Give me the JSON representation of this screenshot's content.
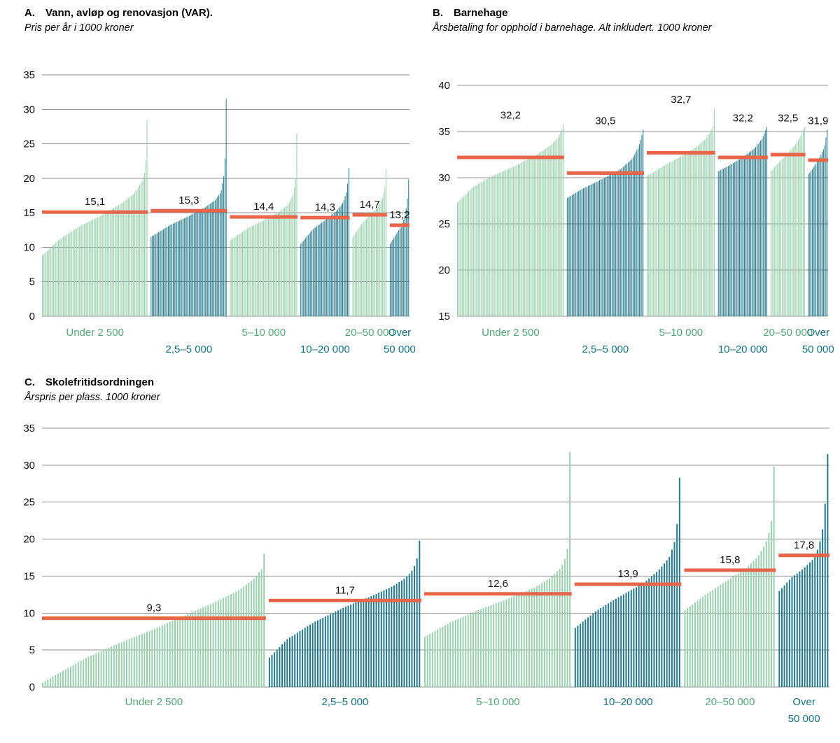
{
  "colors": {
    "green_bar": "#9ccfae",
    "teal_bar": "#26798a",
    "green_label": "#55a476",
    "teal_label": "#17707f",
    "mean_line": "#e8654a",
    "grid": "#8f8f8f",
    "text": "#111111"
  },
  "chart_data": [
    {
      "type": "bar",
      "label": "A.",
      "title": "Vann, avløp og renovasjon (VAR).",
      "subtitle": "Pris per år i 1000 kroner",
      "y_axis": {
        "min": 0,
        "max": 35,
        "step": 5
      },
      "mean_label_position": "above_line",
      "note": "Each thin bar is one municipality, sorted ascending within population-size group; orange segment marks the group mean.",
      "groups": [
        {
          "name": "Under 2 500",
          "color": "green",
          "mean": 15.1,
          "mean_label": "15,1",
          "count": 86,
          "label_row": 1,
          "label_lines": [
            "Under 2 500"
          ],
          "profile": [
            [
              0,
              8.8
            ],
            [
              0.15,
              11
            ],
            [
              0.35,
              13
            ],
            [
              0.55,
              14.5
            ],
            [
              0.75,
              16.3
            ],
            [
              0.88,
              17.8
            ],
            [
              0.95,
              19.5
            ],
            [
              0.98,
              21
            ],
            [
              0.995,
              24
            ],
            [
              1,
              28.5
            ]
          ]
        },
        {
          "name": "2,5–5 000",
          "color": "teal",
          "mean": 15.3,
          "mean_label": "15,3",
          "count": 62,
          "label_row": 2,
          "label_lines": [
            "2,5–5 000"
          ],
          "profile": [
            [
              0,
              11.5
            ],
            [
              0.25,
              13.2
            ],
            [
              0.5,
              14.5
            ],
            [
              0.72,
              15.8
            ],
            [
              0.85,
              16.8
            ],
            [
              0.93,
              18
            ],
            [
              0.97,
              20.5
            ],
            [
              0.99,
              24
            ],
            [
              1,
              31.5
            ]
          ]
        },
        {
          "name": "5–10 000",
          "color": "green",
          "mean": 14.4,
          "mean_label": "14,4",
          "count": 55,
          "label_row": 1,
          "label_lines": [
            "5–10 000"
          ],
          "profile": [
            [
              0,
              11
            ],
            [
              0.25,
              12.7
            ],
            [
              0.5,
              13.9
            ],
            [
              0.72,
              15
            ],
            [
              0.87,
              16.2
            ],
            [
              0.94,
              17.5
            ],
            [
              0.98,
              19.5
            ],
            [
              1,
              26.5
            ]
          ]
        },
        {
          "name": "10–20 000",
          "color": "teal",
          "mean": 14.3,
          "mean_label": "14,3",
          "count": 40,
          "label_row": 2,
          "label_lines": [
            "10–20 000"
          ],
          "profile": [
            [
              0,
              10.5
            ],
            [
              0.25,
              12.6
            ],
            [
              0.5,
              13.9
            ],
            [
              0.75,
              15.3
            ],
            [
              0.88,
              16.5
            ],
            [
              0.95,
              18
            ],
            [
              0.98,
              19.5
            ],
            [
              1,
              21.5
            ]
          ]
        },
        {
          "name": "20–50 000",
          "color": "green",
          "mean": 14.7,
          "mean_label": "14,7",
          "count": 28,
          "label_row": 1,
          "label_lines": [
            "20–50 000"
          ],
          "profile": [
            [
              0,
              11.5
            ],
            [
              0.25,
              13.3
            ],
            [
              0.5,
              14.6
            ],
            [
              0.75,
              15.8
            ],
            [
              0.88,
              17
            ],
            [
              0.96,
              18.5
            ],
            [
              1,
              21.3
            ]
          ]
        },
        {
          "name": "Over 50 000",
          "color": "teal",
          "mean": 13.2,
          "mean_label": "13,2",
          "count": 16,
          "label_row": 1,
          "label_lines": [
            "Over",
            "50 000"
          ],
          "profile": [
            [
              0,
              10.5
            ],
            [
              0.3,
              11.8
            ],
            [
              0.6,
              13
            ],
            [
              0.8,
              14.5
            ],
            [
              0.92,
              16.5
            ],
            [
              1,
              19.8
            ]
          ]
        }
      ]
    },
    {
      "type": "bar",
      "label": "B.",
      "title": "Barnehage",
      "subtitle": "Årsbetaling for opphold i barnehage. Alt inkludert. 1000 kroner",
      "y_axis": {
        "min": 15,
        "max": 40,
        "step": 5
      },
      "mean_label_position": "above_bars",
      "note": "Each thin bar is one municipality, sorted ascending within population-size group; orange segment marks the group mean.",
      "groups": [
        {
          "name": "Under 2 500",
          "color": "green",
          "mean": 32.2,
          "mean_label": "32,2",
          "count": 86,
          "label_row": 1,
          "label_lines": [
            "Under 2 500"
          ],
          "profile": [
            [
              0,
              27.3
            ],
            [
              0.15,
              29
            ],
            [
              0.35,
              30.3
            ],
            [
              0.55,
              31.3
            ],
            [
              0.75,
              32.5
            ],
            [
              0.88,
              33.5
            ],
            [
              0.95,
              34.3
            ],
            [
              0.99,
              35.3
            ],
            [
              1,
              35.8
            ]
          ]
        },
        {
          "name": "2,5–5 000",
          "color": "teal",
          "mean": 30.5,
          "mean_label": "30,5",
          "count": 62,
          "label_row": 2,
          "label_lines": [
            "2,5–5 000"
          ],
          "profile": [
            [
              0,
              27.8
            ],
            [
              0.2,
              28.8
            ],
            [
              0.45,
              29.8
            ],
            [
              0.7,
              30.9
            ],
            [
              0.85,
              32
            ],
            [
              0.94,
              33.3
            ],
            [
              0.98,
              34.5
            ],
            [
              1,
              35.2
            ]
          ]
        },
        {
          "name": "5–10 000",
          "color": "green",
          "mean": 32.7,
          "mean_label": "32,7",
          "count": 55,
          "label_row": 1,
          "label_lines": [
            "5–10 000"
          ],
          "profile": [
            [
              0,
              30.2
            ],
            [
              0.25,
              31.3
            ],
            [
              0.5,
              32.3
            ],
            [
              0.75,
              33.4
            ],
            [
              0.88,
              34.3
            ],
            [
              0.96,
              35.2
            ],
            [
              0.99,
              35.8
            ],
            [
              1,
              37.5
            ]
          ]
        },
        {
          "name": "10–20 000",
          "color": "teal",
          "mean": 32.2,
          "mean_label": "32,2",
          "count": 40,
          "label_row": 2,
          "label_lines": [
            "10–20 000"
          ],
          "profile": [
            [
              0,
              30.7
            ],
            [
              0.25,
              31.4
            ],
            [
              0.5,
              32.2
            ],
            [
              0.75,
              33.2
            ],
            [
              0.9,
              34.2
            ],
            [
              1,
              35.5
            ]
          ]
        },
        {
          "name": "20–50 000",
          "color": "green",
          "mean": 32.5,
          "mean_label": "32,5",
          "count": 28,
          "label_row": 1,
          "label_lines": [
            "20–50 000"
          ],
          "profile": [
            [
              0,
              30.7
            ],
            [
              0.25,
              31.7
            ],
            [
              0.5,
              32.6
            ],
            [
              0.75,
              33.7
            ],
            [
              0.9,
              34.6
            ],
            [
              1,
              35.5
            ]
          ]
        },
        {
          "name": "Over 50 000",
          "color": "teal",
          "mean": 31.9,
          "mean_label": "31,9",
          "count": 16,
          "label_row": 1,
          "label_lines": [
            "Over",
            "50 000"
          ],
          "profile": [
            [
              0,
              30.4
            ],
            [
              0.3,
              31.2
            ],
            [
              0.6,
              32.2
            ],
            [
              0.85,
              33.3
            ],
            [
              1,
              35.2
            ]
          ]
        }
      ]
    },
    {
      "type": "bar",
      "label": "C.",
      "title": "Skolefritidsordningen",
      "subtitle": "Årspris per plass. 1000 kroner",
      "y_axis": {
        "min": 0,
        "max": 35,
        "step": 5
      },
      "mean_label_position": "above_line",
      "note": "Each thin bar is one municipality, sorted ascending within population-size group; orange segment marks the group mean.",
      "groups": [
        {
          "name": "Under 2 500",
          "color": "green",
          "mean": 9.3,
          "mean_label": "9,3",
          "count": 88,
          "label_row": 1,
          "label_lines": [
            "Under 2 500"
          ],
          "profile": [
            [
              0,
              0.6
            ],
            [
              0.08,
              2
            ],
            [
              0.2,
              4
            ],
            [
              0.35,
              6
            ],
            [
              0.5,
              7.8
            ],
            [
              0.65,
              9.8
            ],
            [
              0.78,
              11.5
            ],
            [
              0.88,
              13
            ],
            [
              0.95,
              14.5
            ],
            [
              0.99,
              16
            ],
            [
              1,
              18
            ]
          ]
        },
        {
          "name": "2,5–5 000",
          "color": "teal",
          "mean": 11.7,
          "mean_label": "11,7",
          "count": 60,
          "label_row": 1,
          "label_lines": [
            "2,5–5 000"
          ],
          "profile": [
            [
              0,
              4
            ],
            [
              0.12,
              6.5
            ],
            [
              0.3,
              8.8
            ],
            [
              0.5,
              10.8
            ],
            [
              0.68,
              12.3
            ],
            [
              0.82,
              13.6
            ],
            [
              0.91,
              14.8
            ],
            [
              0.96,
              16
            ],
            [
              0.99,
              17.8
            ],
            [
              1,
              19.8
            ]
          ]
        },
        {
          "name": "5–10 000",
          "color": "green",
          "mean": 12.6,
          "mean_label": "12,6",
          "count": 58,
          "label_row": 1,
          "label_lines": [
            "5–10 000"
          ],
          "profile": [
            [
              0,
              6.8
            ],
            [
              0.18,
              8.8
            ],
            [
              0.38,
              10.5
            ],
            [
              0.58,
              12
            ],
            [
              0.75,
              13.4
            ],
            [
              0.87,
              14.8
            ],
            [
              0.94,
              16.2
            ],
            [
              0.98,
              18
            ],
            [
              0.99,
              20.8
            ],
            [
              1,
              31.8
            ]
          ]
        },
        {
          "name": "10–20 000",
          "color": "teal",
          "mean": 13.9,
          "mean_label": "13,9",
          "count": 42,
          "label_row": 1,
          "label_lines": [
            "10–20 000"
          ],
          "profile": [
            [
              0,
              8
            ],
            [
              0.2,
              10.3
            ],
            [
              0.42,
              12.2
            ],
            [
              0.65,
              14
            ],
            [
              0.8,
              15.8
            ],
            [
              0.9,
              17.5
            ],
            [
              0.95,
              19.5
            ],
            [
              0.98,
              22.5
            ],
            [
              1,
              28.3
            ]
          ]
        },
        {
          "name": "20–50 000",
          "color": "green",
          "mean": 15.8,
          "mean_label": "15,8",
          "count": 36,
          "label_row": 1,
          "label_lines": [
            "20–50 000"
          ],
          "profile": [
            [
              0,
              10.4
            ],
            [
              0.22,
              12.4
            ],
            [
              0.45,
              14.2
            ],
            [
              0.68,
              16
            ],
            [
              0.82,
              17.6
            ],
            [
              0.91,
              19.5
            ],
            [
              0.96,
              21.5
            ],
            [
              0.99,
              24
            ],
            [
              1,
              29.8
            ]
          ]
        },
        {
          "name": "Over 50 000",
          "color": "teal",
          "mean": 17.8,
          "mean_label": "17,8",
          "count": 20,
          "label_row": 1,
          "label_lines": [
            "Over",
            "50 000"
          ],
          "profile": [
            [
              0,
              13
            ],
            [
              0.25,
              14.8
            ],
            [
              0.5,
              16
            ],
            [
              0.7,
              17.3
            ],
            [
              0.82,
              19
            ],
            [
              0.9,
              21.5
            ],
            [
              0.95,
              25
            ],
            [
              0.98,
              28.3
            ],
            [
              1,
              31.5
            ]
          ]
        }
      ]
    }
  ]
}
